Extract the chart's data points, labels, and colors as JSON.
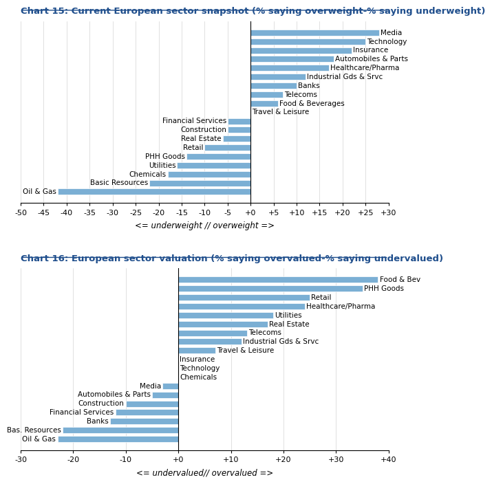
{
  "chart1": {
    "title": "Chart 15: Current European sector snapshot (% saying overweight-% saying underweight)",
    "xlabel": "<= underweight // overweight =>",
    "xlim": [
      -50,
      30
    ],
    "xticks": [
      -50,
      -45,
      -40,
      -35,
      -30,
      -25,
      -20,
      -15,
      -10,
      -5,
      0,
      5,
      10,
      15,
      20,
      25,
      30
    ],
    "xtick_labels": [
      "-50",
      "-45",
      "-40",
      "-35",
      "-30",
      "-25",
      "-20",
      "-15",
      "-10",
      "-5",
      "+0",
      "+5",
      "+10",
      "+15",
      "+20",
      "+25",
      "+30"
    ],
    "categories": [
      "Media",
      "Technology",
      "Insurance",
      "Automobiles & Parts",
      "Healthcare/Pharma",
      "Industrial Gds & Srvc",
      "Banks",
      "Telecoms",
      "Food & Beverages",
      "Travel & Leisure",
      "Financial Services",
      "Construction",
      "Real Estate",
      "Retail",
      "PHH Goods",
      "Utilities",
      "Chemicals",
      "Basic Resources",
      "Oil & Gas"
    ],
    "values": [
      28,
      25,
      22,
      18,
      17,
      12,
      10,
      7,
      6,
      0,
      -5,
      -5,
      -6,
      -10,
      -14,
      -16,
      -18,
      -22,
      -42
    ],
    "bar_color": "#7BAFD4"
  },
  "chart2": {
    "title": "Chart 16: European sector valuation (% saying overvalued-% saying undervalued)",
    "xlabel": "<= undervalued// overvalued =>",
    "xlim": [
      -30,
      40
    ],
    "xticks": [
      -30,
      -20,
      -10,
      0,
      10,
      20,
      30,
      40
    ],
    "xtick_labels": [
      "-30",
      "-20",
      "-10",
      "+0",
      "+10",
      "+20",
      "+30",
      "+40"
    ],
    "categories": [
      "Food & Bev",
      "PHH Goods",
      "Retail",
      "Healthcare/Pharma",
      "Utilities",
      "Real Estate",
      "Telecoms",
      "Industrial Gds & Srvc",
      "Travel & Leisure",
      "Insurance",
      "Technology",
      "Chemicals",
      "Media",
      "Automobiles & Parts",
      "Construction",
      "Financial Services",
      "Banks",
      "Bas. Resources",
      "Oil & Gas"
    ],
    "values": [
      38,
      35,
      25,
      24,
      18,
      17,
      13,
      12,
      7,
      0,
      0,
      0,
      -3,
      -5,
      -10,
      -12,
      -13,
      -22,
      -23
    ],
    "bar_color": "#7BAFD4"
  },
  "title_color": "#1F4E8C",
  "title_fontsize": 9.5,
  "bar_label_fontsize": 7.5,
  "axis_fontsize": 8,
  "xlabel_fontsize": 8.5
}
